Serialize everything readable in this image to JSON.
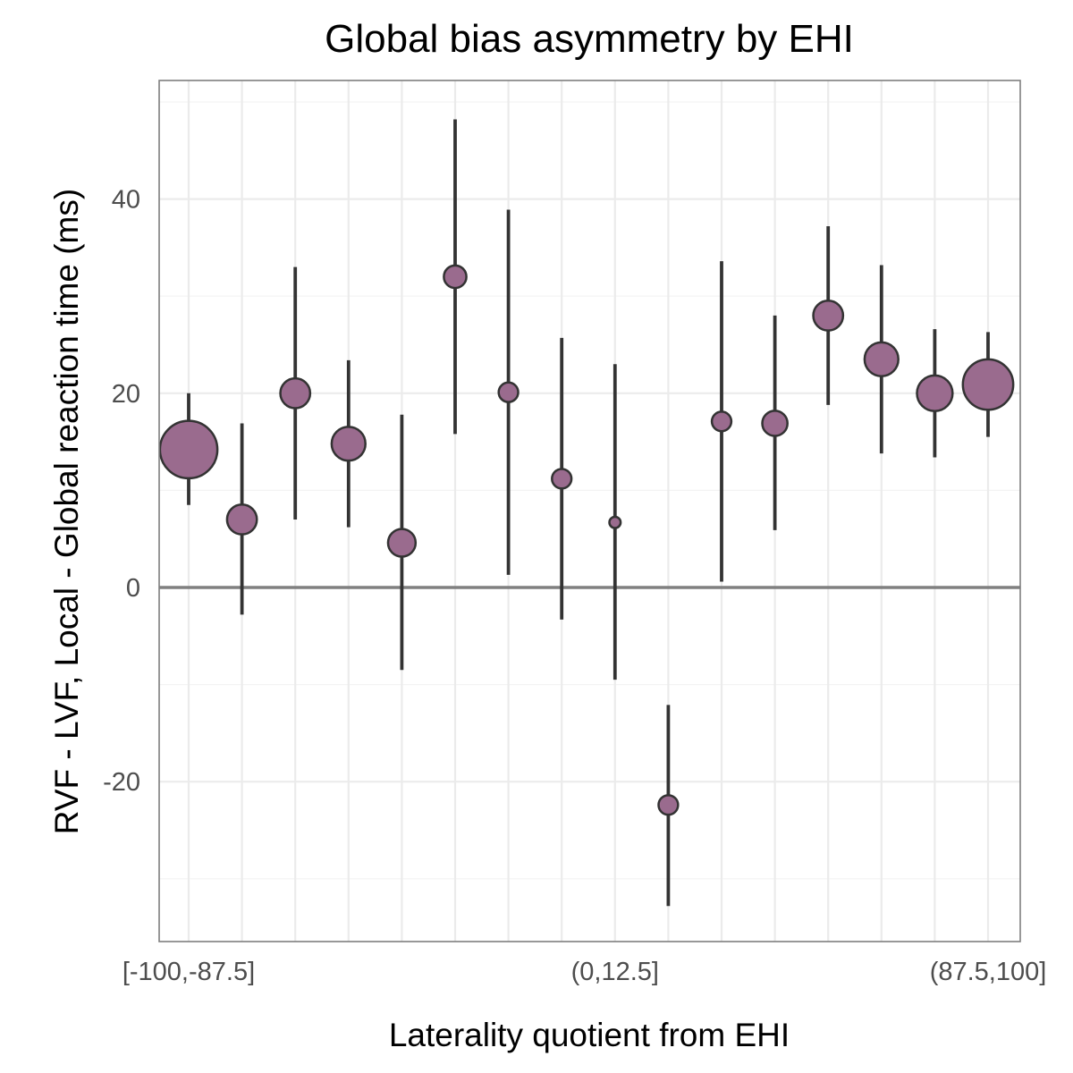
{
  "chart_data": {
    "type": "scatter",
    "title": "Global bias asymmetry by EHI",
    "xlabel": "Laterality quotient from EHI",
    "ylabel": "RVF - LVF, Local - Global reaction time (ms)",
    "x_tick_labels": [
      {
        "index": 0,
        "label": "[-100,-87.5]"
      },
      {
        "index": 8,
        "label": "(0,12.5]"
      },
      {
        "index": 15,
        "label": "(87.5,100]"
      }
    ],
    "ylim": [
      -36.5,
      52
    ],
    "y_ticks": [
      -20,
      0,
      20,
      40
    ],
    "y_tick_labels": [
      "-20",
      "0",
      "20",
      "40"
    ],
    "y_minor_ticks": [
      -30,
      -10,
      10,
      30,
      50
    ],
    "reference_line": 0,
    "grid": true,
    "point_color": "#9a6b8e",
    "point_stroke": "#333333",
    "points": [
      {
        "category": "[-100,-87.5]",
        "mean": 14.2,
        "lower": 8.5,
        "upper": 20.0,
        "n": 26
      },
      {
        "category": "",
        "mean": 7.0,
        "lower": -2.8,
        "upper": 16.9,
        "n": 7
      },
      {
        "category": "",
        "mean": 20.0,
        "lower": 7.0,
        "upper": 33.0,
        "n": 7
      },
      {
        "category": "",
        "mean": 14.8,
        "lower": 6.2,
        "upper": 23.4,
        "n": 9
      },
      {
        "category": "",
        "mean": 4.6,
        "lower": -8.5,
        "upper": 17.8,
        "n": 6
      },
      {
        "category": "",
        "mean": 32.0,
        "lower": 15.8,
        "upper": 48.2,
        "n": 4
      },
      {
        "category": "",
        "mean": 20.1,
        "lower": 1.3,
        "upper": 38.9,
        "n": 3
      },
      {
        "category": "",
        "mean": 11.2,
        "lower": -3.3,
        "upper": 25.7,
        "n": 3
      },
      {
        "category": "(0,12.5]",
        "mean": 6.7,
        "lower": -9.5,
        "upper": 23.0,
        "n": 1
      },
      {
        "category": "",
        "mean": -22.4,
        "lower": -32.8,
        "upper": -12.1,
        "n": 3
      },
      {
        "category": "",
        "mean": 17.1,
        "lower": 0.6,
        "upper": 33.6,
        "n": 3
      },
      {
        "category": "",
        "mean": 16.9,
        "lower": 5.9,
        "upper": 28.0,
        "n": 5
      },
      {
        "category": "",
        "mean": 28.0,
        "lower": 18.8,
        "upper": 37.2,
        "n": 7
      },
      {
        "category": "",
        "mean": 23.5,
        "lower": 13.8,
        "upper": 33.2,
        "n": 9
      },
      {
        "category": "",
        "mean": 20.0,
        "lower": 13.4,
        "upper": 26.6,
        "n": 10
      },
      {
        "category": "(87.5,100]",
        "mean": 20.9,
        "lower": 15.5,
        "upper": 26.3,
        "n": 20
      }
    ]
  }
}
